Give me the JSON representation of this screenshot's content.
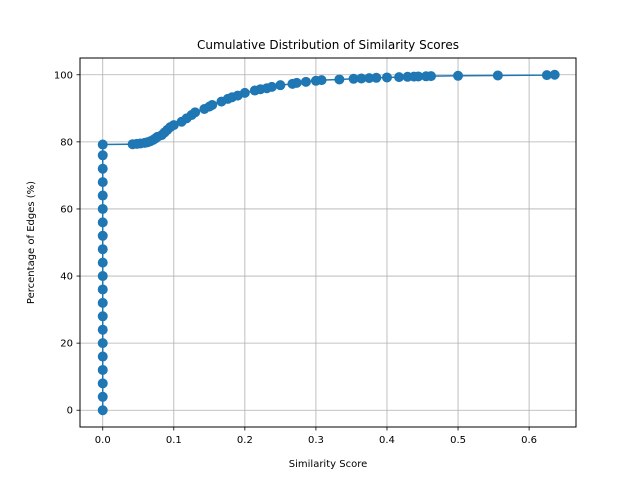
{
  "chart_data": {
    "type": "line",
    "title": "Cumulative Distribution of Similarity Scores",
    "xlabel": "Similarity Score",
    "ylabel": "Percentage of Edges (%)",
    "xlim": [
      -0.032,
      0.666
    ],
    "ylim": [
      -5,
      105
    ],
    "xticks": [
      0.0,
      0.1,
      0.2,
      0.3,
      0.4,
      0.5,
      0.6
    ],
    "xtick_labels": [
      "0.0",
      "0.1",
      "0.2",
      "0.3",
      "0.4",
      "0.5",
      "0.6"
    ],
    "yticks": [
      0,
      20,
      40,
      60,
      80,
      100
    ],
    "ytick_labels": [
      "0",
      "20",
      "40",
      "60",
      "80",
      "100"
    ],
    "grid": true,
    "legend": "none",
    "marker": "circle",
    "color": "#1f77b4",
    "series": [
      {
        "x": [
          0.0,
          0.0,
          0.0,
          0.0,
          0.0,
          0.0,
          0.0,
          0.0,
          0.0,
          0.0,
          0.0,
          0.0,
          0.0,
          0.0,
          0.0,
          0.0,
          0.0,
          0.0,
          0.0,
          0.0,
          0.0,
          0.042,
          0.048,
          0.053,
          0.059,
          0.063,
          0.067,
          0.071,
          0.074,
          0.077,
          0.083,
          0.087,
          0.091,
          0.095,
          0.1,
          0.111,
          0.118,
          0.125,
          0.13,
          0.143,
          0.15,
          0.154,
          0.167,
          0.176,
          0.182,
          0.19,
          0.2,
          0.214,
          0.222,
          0.231,
          0.238,
          0.25,
          0.267,
          0.273,
          0.286,
          0.3,
          0.308,
          0.333,
          0.353,
          0.364,
          0.375,
          0.385,
          0.4,
          0.417,
          0.429,
          0.438,
          0.444,
          0.455,
          0.462,
          0.5,
          0.556,
          0.625,
          0.636
        ],
        "y": [
          0,
          4,
          8,
          12,
          16,
          20,
          24,
          28,
          32,
          36,
          40,
          44,
          48,
          52,
          56,
          60,
          64,
          68,
          72,
          76,
          79.2,
          79.3,
          79.4,
          79.5,
          79.7,
          79.9,
          80.2,
          80.6,
          81.0,
          81.5,
          82.0,
          82.8,
          83.6,
          84.4,
          85.0,
          86.0,
          87.0,
          88.0,
          88.8,
          89.8,
          90.5,
          91.0,
          92.0,
          92.8,
          93.3,
          93.8,
          94.6,
          95.3,
          95.7,
          96.0,
          96.4,
          96.9,
          97.3,
          97.6,
          97.9,
          98.2,
          98.4,
          98.6,
          98.8,
          98.9,
          99.0,
          99.1,
          99.2,
          99.3,
          99.4,
          99.45,
          99.5,
          99.55,
          99.6,
          99.7,
          99.8,
          99.9,
          100.0
        ]
      }
    ]
  }
}
